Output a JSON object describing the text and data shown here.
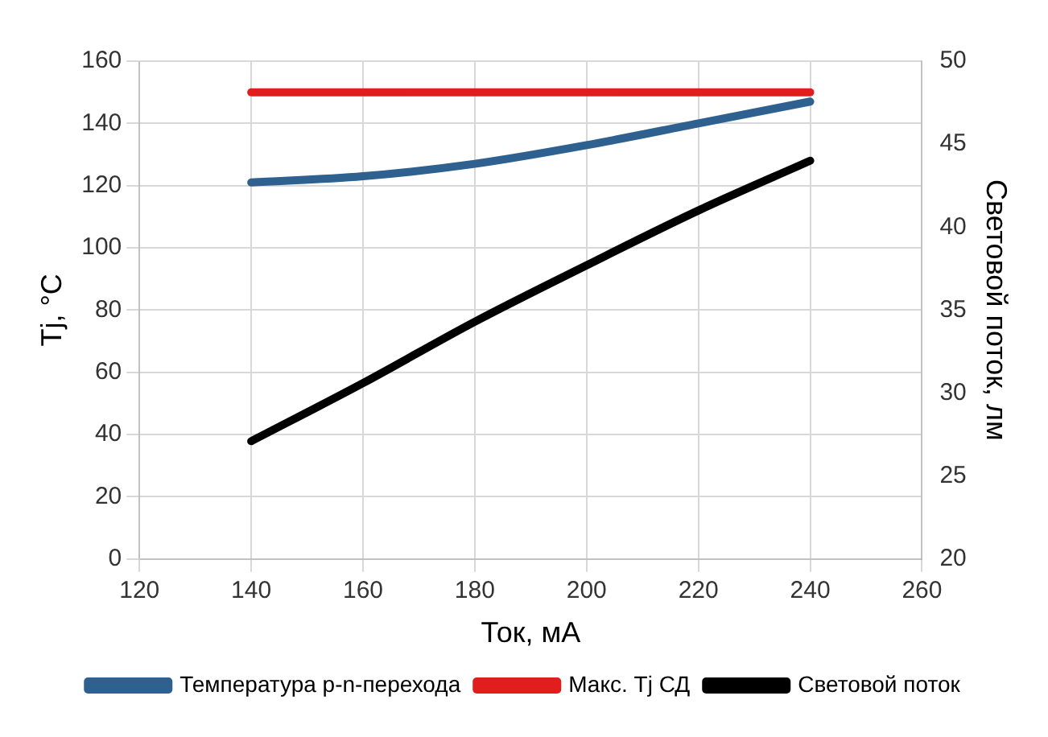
{
  "chart_data": {
    "type": "line",
    "xlabel": "Ток, мА",
    "ylabel": "Tj, °C",
    "y2label": "Световой поток, лм",
    "x": [
      140,
      160,
      180,
      200,
      220,
      240
    ],
    "series": [
      {
        "name": "Температура p-n-перехода",
        "color": "#2e6090",
        "values": [
          121,
          123,
          127,
          133,
          140,
          147
        ]
      },
      {
        "name": "Макс. Tj СД",
        "color": "#e01e1e",
        "values": [
          150,
          150,
          150,
          150,
          150,
          150
        ]
      },
      {
        "name": "Световой поток",
        "color": "#000000",
        "axis": "y2",
        "values": [
          27.1,
          30.6,
          34.3,
          37.7,
          41,
          44
        ]
      }
    ],
    "xlim": [
      120,
      260
    ],
    "xticks": [
      120,
      140,
      160,
      180,
      200,
      220,
      240,
      260
    ],
    "ylim": [
      0,
      160
    ],
    "yticks": [
      0,
      20,
      40,
      60,
      80,
      100,
      120,
      140,
      160
    ],
    "y2lim": [
      20,
      50
    ],
    "y2ticks": [
      20,
      25,
      30,
      35,
      40,
      45,
      50
    ],
    "grid": true,
    "legend": "bottom",
    "marker": "none",
    "line_style": "solid"
  }
}
